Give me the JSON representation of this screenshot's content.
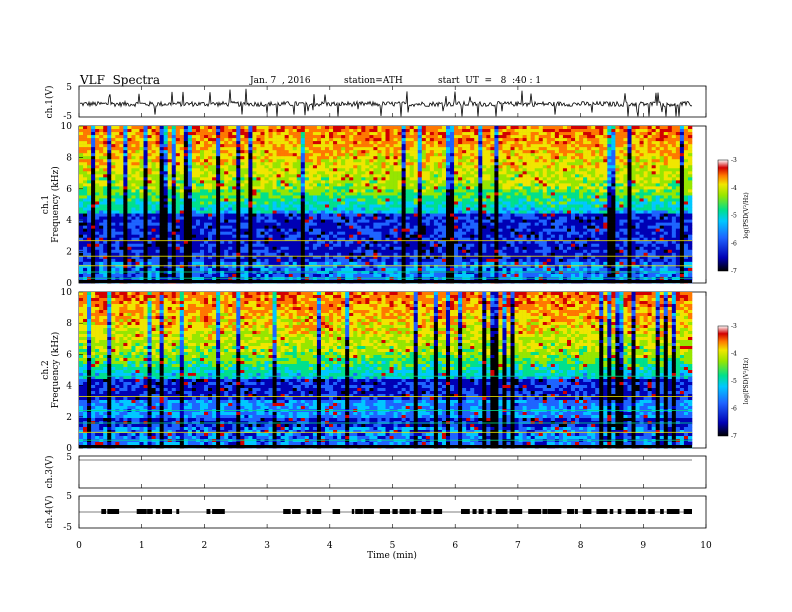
{
  "header": {
    "title": "VLF  Spectra",
    "date": "Jan. 7  , 2016",
    "station": "station=ATH",
    "start": "start  UT  =   8  :40 : 1"
  },
  "chart_data": [
    {
      "type": "line",
      "ylabel": "ch.1(V)",
      "ylim": [
        -5,
        5
      ],
      "y_ticks": [
        "5",
        "-5"
      ],
      "description_note": "",
      "baseline": -0.8
    },
    {
      "type": "heatmap",
      "ylabel": "ch.1\nFrequency (kHz)",
      "ylabel_lines": [
        "ch.1",
        "Frequency (kHz)"
      ],
      "ylim": [
        0,
        10
      ],
      "y_ticks": [
        "0",
        "2",
        "4",
        "6",
        "8",
        "10"
      ],
      "colorbar": {
        "label": "log(PSD(V²/Hz)",
        "range": [
          -7,
          -3
        ],
        "ticks": [
          "-3",
          "-4",
          "-5",
          "-6",
          "-7"
        ]
      }
    },
    {
      "type": "heatmap",
      "ylabel_lines": [
        "ch.2",
        "Frequency (kHz)"
      ],
      "ylim": [
        0,
        10
      ],
      "y_ticks": [
        "0",
        "2",
        "4",
        "6",
        "8",
        "10"
      ],
      "colorbar": {
        "label": "log(PSD(V²/Hz)",
        "range": [
          -7,
          -3
        ],
        "ticks": [
          "-3",
          "-4",
          "-5",
          "-6",
          "-7"
        ]
      }
    },
    {
      "type": "line",
      "ylabel": "ch.3(V)",
      "ylim": [
        -5,
        5
      ],
      "y_ticks": [
        "5"
      ],
      "baseline": 0
    },
    {
      "type": "line",
      "ylabel": "ch.4(V)",
      "ylim": [
        -5,
        5
      ],
      "y_ticks": [
        "5",
        "-5"
      ],
      "baseline": 0
    }
  ],
  "x_axis": {
    "label": "Time  (min)",
    "range": [
      0,
      10
    ],
    "ticks": [
      "0",
      "1",
      "2",
      "3",
      "4",
      "5",
      "6",
      "7",
      "8",
      "9",
      "10"
    ]
  },
  "colors": {
    "colormap": [
      "#000000",
      "#0000b4",
      "#1e64ff",
      "#00c8ff",
      "#00e08c",
      "#96e600",
      "#f0e600",
      "#ff7800",
      "#d20000",
      "#ffffff"
    ]
  }
}
